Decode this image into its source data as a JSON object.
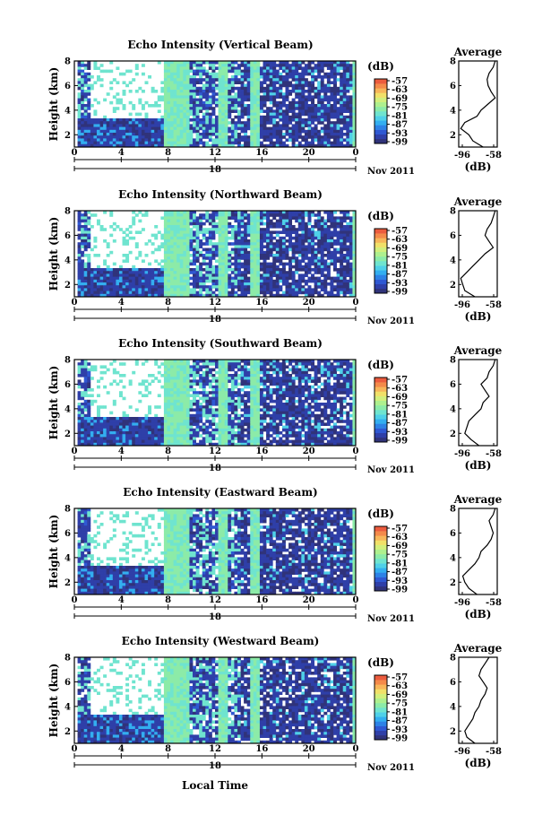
{
  "figure": {
    "xlabel_bottom": "Local Time",
    "date_label": "Nov 2011",
    "day_label": "18",
    "colorbar_unit": "(dB)",
    "avg_title": "Average",
    "avg_xlabel": "(dB)"
  },
  "chart_data": [
    {
      "type": "heatmap",
      "title": "Echo Intensity (Vertical Beam)",
      "ylabel": "Height (km)",
      "x_ticks": [
        "0",
        "4",
        "8",
        "12",
        "16",
        "20",
        "0"
      ],
      "y_ticks": [
        "2",
        "4",
        "6",
        "8"
      ],
      "xlim_hours": [
        0,
        24
      ],
      "ylim_km": [
        1,
        8
      ],
      "colorbar_ticks": [
        "-57",
        "-63",
        "-69",
        "-75",
        "-81",
        "-87",
        "-93",
        "-99"
      ],
      "colorbar_range_db": [
        -99,
        -57
      ],
      "profile": {
        "title": "Average",
        "xlabel": "(dB)",
        "x_ticks": [
          "-96",
          "-58"
        ],
        "y_ticks": [
          "2",
          "4",
          "6",
          "8"
        ],
        "xlim": [
          -96,
          -58
        ],
        "ylim": [
          1,
          8
        ],
        "height_km": [
          1.0,
          1.5,
          2.0,
          2.5,
          3.0,
          3.5,
          4.0,
          4.5,
          5.0,
          5.5,
          6.0,
          6.5,
          7.0,
          7.5,
          8.0
        ],
        "db": [
          -72,
          -82,
          -86,
          -94,
          -90,
          -78,
          -74,
          -67,
          -60,
          -64,
          -67,
          -68,
          -66,
          -62,
          -60
        ]
      }
    },
    {
      "type": "heatmap",
      "title": "Echo Intensity (Northward Beam)",
      "ylabel": "Height (km)",
      "x_ticks": [
        "0",
        "4",
        "8",
        "12",
        "16",
        "20",
        "0"
      ],
      "y_ticks": [
        "2",
        "4",
        "6",
        "8"
      ],
      "xlim_hours": [
        0,
        24
      ],
      "ylim_km": [
        1,
        8
      ],
      "colorbar_ticks": [
        "-57",
        "-63",
        "-69",
        "-75",
        "-81",
        "-87",
        "-93",
        "-99"
      ],
      "colorbar_range_db": [
        -99,
        -57
      ],
      "profile": {
        "title": "Average",
        "xlabel": "(dB)",
        "x_ticks": [
          "-96",
          "-58"
        ],
        "y_ticks": [
          "2",
          "4",
          "6",
          "8"
        ],
        "xlim": [
          -96,
          -58
        ],
        "ylim": [
          1,
          8
        ],
        "height_km": [
          1.0,
          1.5,
          2.0,
          2.5,
          3.0,
          3.5,
          4.0,
          4.5,
          5.0,
          5.5,
          6.0,
          6.5,
          7.0,
          7.5,
          8.0
        ],
        "db": [
          -80,
          -90,
          -92,
          -94,
          -88,
          -82,
          -76,
          -70,
          -62,
          -66,
          -70,
          -68,
          -64,
          -62,
          -60
        ]
      }
    },
    {
      "type": "heatmap",
      "title": "Echo Intensity (Southward Beam)",
      "ylabel": "Height (km)",
      "x_ticks": [
        "0",
        "4",
        "8",
        "12",
        "16",
        "20",
        "0"
      ],
      "y_ticks": [
        "2",
        "4",
        "6",
        "8"
      ],
      "xlim_hours": [
        0,
        24
      ],
      "ylim_km": [
        1,
        8
      ],
      "colorbar_ticks": [
        "-57",
        "-63",
        "-69",
        "-75",
        "-81",
        "-87",
        "-93",
        "-99"
      ],
      "colorbar_range_db": [
        -99,
        -57
      ],
      "profile": {
        "title": "Average",
        "xlabel": "(dB)",
        "x_ticks": [
          "-96",
          "-58"
        ],
        "y_ticks": [
          "2",
          "4",
          "6",
          "8"
        ],
        "xlim": [
          -96,
          -58
        ],
        "ylim": [
          1,
          8
        ],
        "height_km": [
          1.0,
          1.5,
          2.0,
          2.5,
          3.0,
          3.5,
          4.0,
          4.5,
          5.0,
          5.5,
          6.0,
          6.5,
          7.0,
          7.5,
          8.0
        ],
        "db": [
          -76,
          -84,
          -90,
          -88,
          -86,
          -80,
          -74,
          -72,
          -66,
          -70,
          -74,
          -68,
          -66,
          -62,
          -60
        ]
      }
    },
    {
      "type": "heatmap",
      "title": "Echo Intensity (Eastward Beam)",
      "ylabel": "Height (km)",
      "x_ticks": [
        "0",
        "4",
        "8",
        "12",
        "16",
        "20",
        "0"
      ],
      "y_ticks": [
        "2",
        "4",
        "6",
        "8"
      ],
      "xlim_hours": [
        0,
        24
      ],
      "ylim_km": [
        1,
        8
      ],
      "colorbar_ticks": [
        "-57",
        "-63",
        "-69",
        "-75",
        "-81",
        "-87",
        "-93",
        "-99"
      ],
      "colorbar_range_db": [
        -99,
        -57
      ],
      "profile": {
        "title": "Average",
        "xlabel": "(dB)",
        "x_ticks": [
          "-96",
          "-58"
        ],
        "y_ticks": [
          "2",
          "4",
          "6",
          "8"
        ],
        "xlim": [
          -96,
          -58
        ],
        "ylim": [
          1,
          8
        ],
        "height_km": [
          1.0,
          1.5,
          2.0,
          2.5,
          3.0,
          3.5,
          4.0,
          4.5,
          5.0,
          5.5,
          6.0,
          6.5,
          7.0,
          7.5,
          8.0
        ],
        "db": [
          -78,
          -86,
          -90,
          -92,
          -86,
          -80,
          -76,
          -74,
          -68,
          -64,
          -62,
          -64,
          -66,
          -62,
          -60
        ]
      }
    },
    {
      "type": "heatmap",
      "title": "Echo Intensity (Westward Beam)",
      "ylabel": "Height (km)",
      "x_ticks": [
        "0",
        "4",
        "8",
        "12",
        "16",
        "20",
        "0"
      ],
      "y_ticks": [
        "2",
        "4",
        "6",
        "8"
      ],
      "xlim_hours": [
        0,
        24
      ],
      "ylim_km": [
        1,
        8
      ],
      "colorbar_ticks": [
        "-57",
        "-63",
        "-69",
        "-75",
        "-81",
        "-87",
        "-93",
        "-99"
      ],
      "colorbar_range_db": [
        -99,
        -57
      ],
      "profile": {
        "title": "Average",
        "xlabel": "(dB)",
        "x_ticks": [
          "-96",
          "-58"
        ],
        "y_ticks": [
          "2",
          "4",
          "6",
          "8"
        ],
        "xlim": [
          -96,
          -58
        ],
        "ylim": [
          1,
          8
        ],
        "height_km": [
          1.0,
          1.5,
          2.0,
          2.5,
          3.0,
          3.5,
          4.0,
          4.5,
          5.0,
          5.5,
          6.0,
          6.5,
          7.0,
          7.5,
          8.0
        ],
        "db": [
          -80,
          -88,
          -90,
          -86,
          -82,
          -80,
          -76,
          -74,
          -70,
          -68,
          -72,
          -76,
          -74,
          -70,
          -66
        ]
      }
    }
  ]
}
